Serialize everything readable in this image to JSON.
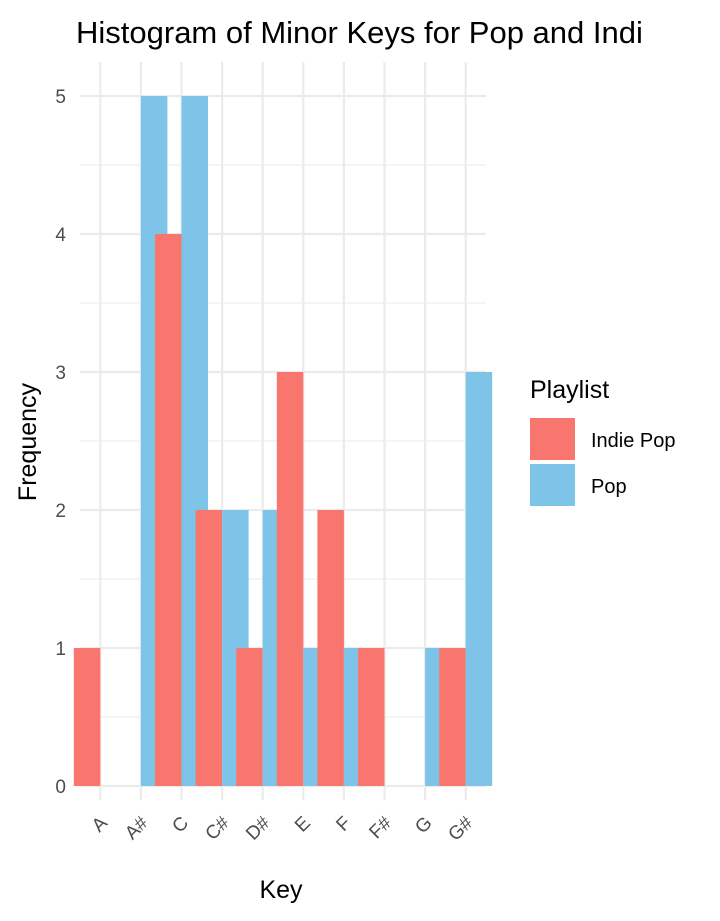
{
  "chart_data": {
    "type": "bar",
    "title": "Histogram of Minor Keys for Pop and Indi",
    "xlabel": "Key",
    "ylabel": "Frequency",
    "categories": [
      "A",
      "A#",
      "C",
      "C#",
      "D#",
      "E",
      "F",
      "F#",
      "G",
      "G#"
    ],
    "series": [
      {
        "name": "Indie Pop",
        "color": "#F8766D",
        "values": [
          1,
          0,
          4,
          2,
          1,
          3,
          2,
          1,
          0,
          1
        ]
      },
      {
        "name": "Pop",
        "color": "#7DC4E8",
        "values": [
          0,
          5,
          5,
          2,
          2,
          1,
          1,
          0,
          1,
          3
        ]
      }
    ],
    "yticks": [
      "0",
      "1",
      "2",
      "3",
      "4",
      "5"
    ],
    "ylim": [
      0,
      5.25
    ],
    "grid": true,
    "legend": {
      "title": "Playlist",
      "position": "right"
    }
  }
}
